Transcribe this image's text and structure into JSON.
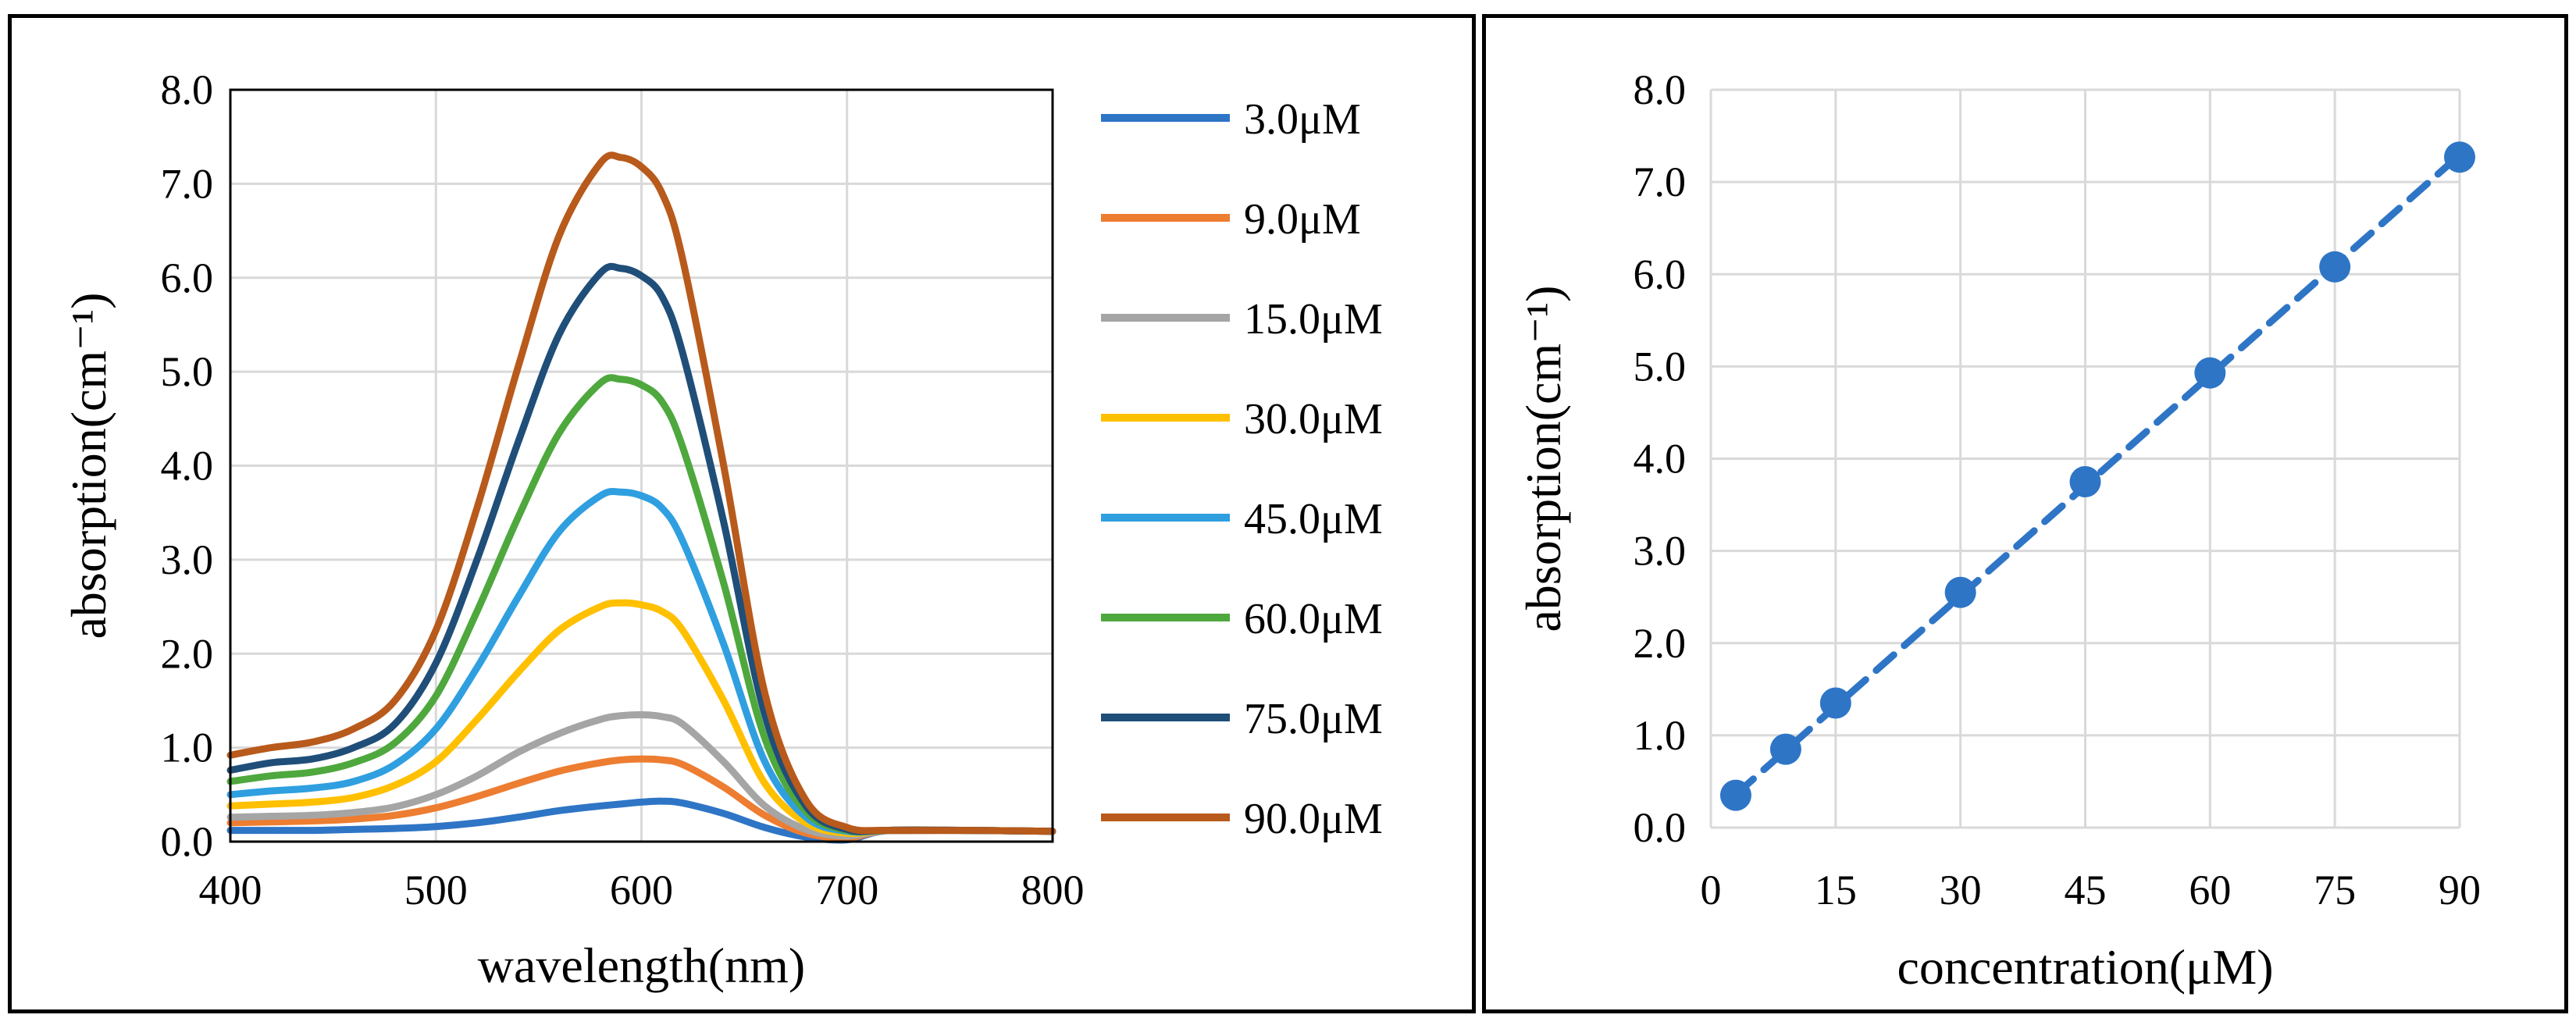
{
  "chart_data": [
    {
      "type": "line",
      "title": "",
      "xlabel": "wavelength(nm)",
      "ylabel": "absorption(cm⁻¹)",
      "xlim": [
        400,
        800
      ],
      "ylim": [
        0,
        8
      ],
      "xticks": [
        "400",
        "500",
        "600",
        "700",
        "800"
      ],
      "yticks": [
        "0.0",
        "1.0",
        "2.0",
        "3.0",
        "4.0",
        "5.0",
        "6.0",
        "7.0",
        "8.0"
      ],
      "grid": true,
      "legend_position": "right",
      "x": [
        400,
        420,
        440,
        460,
        480,
        500,
        520,
        540,
        560,
        580,
        590,
        600,
        610,
        620,
        640,
        660,
        680,
        700,
        720,
        760,
        800
      ],
      "series": [
        {
          "name": "3.0μM",
          "color": "#2E75C6",
          "values": [
            0.12,
            0.12,
            0.12,
            0.13,
            0.14,
            0.16,
            0.2,
            0.26,
            0.33,
            0.38,
            0.4,
            0.42,
            0.43,
            0.41,
            0.3,
            0.15,
            0.05,
            0.02,
            0.12,
            0.12,
            0.11
          ]
        },
        {
          "name": "9.0μM",
          "color": "#ED7D31",
          "values": [
            0.2,
            0.21,
            0.22,
            0.24,
            0.28,
            0.36,
            0.48,
            0.62,
            0.75,
            0.84,
            0.87,
            0.88,
            0.87,
            0.82,
            0.58,
            0.28,
            0.09,
            0.04,
            0.12,
            0.12,
            0.11
          ]
        },
        {
          "name": "15.0μM",
          "color": "#A5A5A5",
          "values": [
            0.26,
            0.27,
            0.28,
            0.31,
            0.37,
            0.5,
            0.7,
            0.95,
            1.15,
            1.3,
            1.34,
            1.35,
            1.33,
            1.25,
            0.85,
            0.38,
            0.13,
            0.06,
            0.12,
            0.12,
            0.11
          ]
        },
        {
          "name": "30.0μM",
          "color": "#FFC000",
          "values": [
            0.38,
            0.4,
            0.42,
            0.47,
            0.6,
            0.85,
            1.3,
            1.8,
            2.25,
            2.5,
            2.54,
            2.52,
            2.45,
            2.25,
            1.5,
            0.62,
            0.2,
            0.09,
            0.12,
            0.12,
            0.11
          ]
        },
        {
          "name": "45.0μM",
          "color": "#2F9FE0",
          "values": [
            0.5,
            0.54,
            0.57,
            0.64,
            0.82,
            1.2,
            1.85,
            2.6,
            3.3,
            3.68,
            3.72,
            3.68,
            3.55,
            3.2,
            2.1,
            0.85,
            0.26,
            0.11,
            0.12,
            0.12,
            0.11
          ]
        },
        {
          "name": "60.0μM",
          "color": "#4EA83D",
          "values": [
            0.64,
            0.7,
            0.74,
            0.84,
            1.05,
            1.55,
            2.45,
            3.45,
            4.35,
            4.88,
            4.92,
            4.86,
            4.68,
            4.2,
            2.75,
            1.1,
            0.32,
            0.12,
            0.12,
            0.12,
            0.11
          ]
        },
        {
          "name": "75.0μM",
          "color": "#1F4E79",
          "values": [
            0.76,
            0.84,
            0.88,
            1.0,
            1.25,
            1.9,
            3.0,
            4.25,
            5.4,
            6.05,
            6.1,
            6.02,
            5.8,
            5.2,
            3.4,
            1.35,
            0.38,
            0.13,
            0.12,
            0.12,
            0.11
          ]
        },
        {
          "name": "90.0μM",
          "color": "#B85A1B",
          "values": [
            0.92,
            1.0,
            1.06,
            1.2,
            1.5,
            2.25,
            3.55,
            5.05,
            6.45,
            7.22,
            7.28,
            7.18,
            6.9,
            6.2,
            4.0,
            1.58,
            0.44,
            0.15,
            0.12,
            0.12,
            0.11
          ]
        }
      ]
    },
    {
      "type": "scatter",
      "title": "",
      "xlabel": "concentration(μM)",
      "ylabel": "absorption(cm⁻¹)",
      "xlim": [
        0,
        90
      ],
      "ylim": [
        0,
        8
      ],
      "xticks": [
        "0",
        "15",
        "30",
        "45",
        "60",
        "75",
        "90"
      ],
      "yticks": [
        "0.0",
        "1.0",
        "2.0",
        "3.0",
        "4.0",
        "5.0",
        "6.0",
        "7.0",
        "8.0"
      ],
      "grid": true,
      "series": [
        {
          "name": "absorption",
          "color": "#2E75C6",
          "x": [
            3,
            9,
            15,
            30,
            45,
            60,
            75,
            90
          ],
          "values": [
            0.35,
            0.85,
            1.35,
            2.55,
            3.75,
            4.93,
            6.08,
            7.27
          ]
        }
      ],
      "trendline": {
        "style": "dashed",
        "color": "#2E75C6",
        "slope": 0.0797,
        "intercept": 0.12
      }
    }
  ]
}
